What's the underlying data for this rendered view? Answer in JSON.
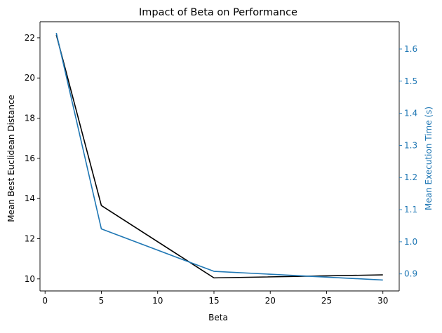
{
  "chart_data": {
    "type": "line",
    "title": "Impact of Beta on Performance",
    "xlabel": "Beta",
    "ylabel_left": "Mean Best Euclidean Distance",
    "ylabel_right": "Mean Execution Time (s)",
    "xlim": [
      -0.45,
      31.45
    ],
    "ylim_left": [
      9.4,
      22.8
    ],
    "ylim_right": [
      0.847,
      1.685
    ],
    "x_ticks": [
      0,
      5,
      10,
      15,
      20,
      25,
      30
    ],
    "y_ticks_left": [
      10,
      12,
      14,
      16,
      18,
      20,
      22
    ],
    "y_ticks_right": [
      0.9,
      1.0,
      1.1,
      1.2,
      1.3,
      1.4,
      1.5,
      1.6
    ],
    "grid": false,
    "series": [
      {
        "axis": "left",
        "color": "#000000",
        "x": [
          1,
          5,
          15,
          30
        ],
        "values": [
          22.15,
          13.65,
          10.05,
          10.2
        ]
      },
      {
        "axis": "right",
        "color": "#1f77b4",
        "x": [
          1,
          5,
          15,
          30
        ],
        "values": [
          1.65,
          1.04,
          0.908,
          0.881
        ]
      }
    ]
  }
}
